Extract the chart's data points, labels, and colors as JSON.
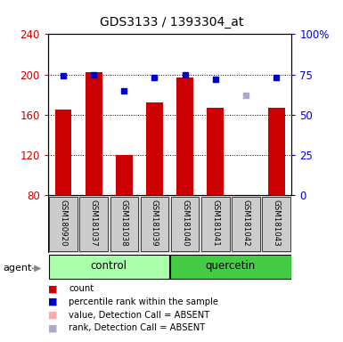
{
  "title": "GDS3133 / 1393304_at",
  "samples": [
    "GSM180920",
    "GSM181037",
    "GSM181038",
    "GSM181039",
    "GSM181040",
    "GSM181041",
    "GSM181042",
    "GSM181043"
  ],
  "groups": [
    "control",
    "control",
    "control",
    "control",
    "quercetin",
    "quercetin",
    "quercetin",
    "quercetin"
  ],
  "bar_values": [
    165,
    202,
    120,
    172,
    197,
    167,
    80,
    167
  ],
  "rank_values": [
    74,
    75,
    65,
    73,
    75,
    72,
    62,
    73
  ],
  "absent_flags": [
    false,
    false,
    false,
    false,
    false,
    false,
    true,
    false
  ],
  "ylim_left": [
    80,
    240
  ],
  "ylim_right": [
    0,
    100
  ],
  "yticks_left": [
    80,
    120,
    160,
    200,
    240
  ],
  "yticks_right": [
    0,
    25,
    50,
    75,
    100
  ],
  "bar_color": "#cc0000",
  "rank_color": "#0000cc",
  "absent_bar_color": "#ffaaaa",
  "absent_rank_color": "#aaaacc",
  "control_bg": "#aaffaa",
  "quercetin_bg": "#44cc44",
  "legend_items": [
    {
      "label": "count",
      "color": "#cc0000"
    },
    {
      "label": "percentile rank within the sample",
      "color": "#0000cc"
    },
    {
      "label": "value, Detection Call = ABSENT",
      "color": "#ffaaaa"
    },
    {
      "label": "rank, Detection Call = ABSENT",
      "color": "#aaaacc"
    }
  ],
  "agent_label": "agent",
  "tick_label_color_left": "#cc0000",
  "tick_label_color_right": "#0000cc",
  "gridline_values": [
    120,
    160,
    200
  ],
  "sample_box_color": "#cccccc",
  "plot_bg": "#ffffff"
}
